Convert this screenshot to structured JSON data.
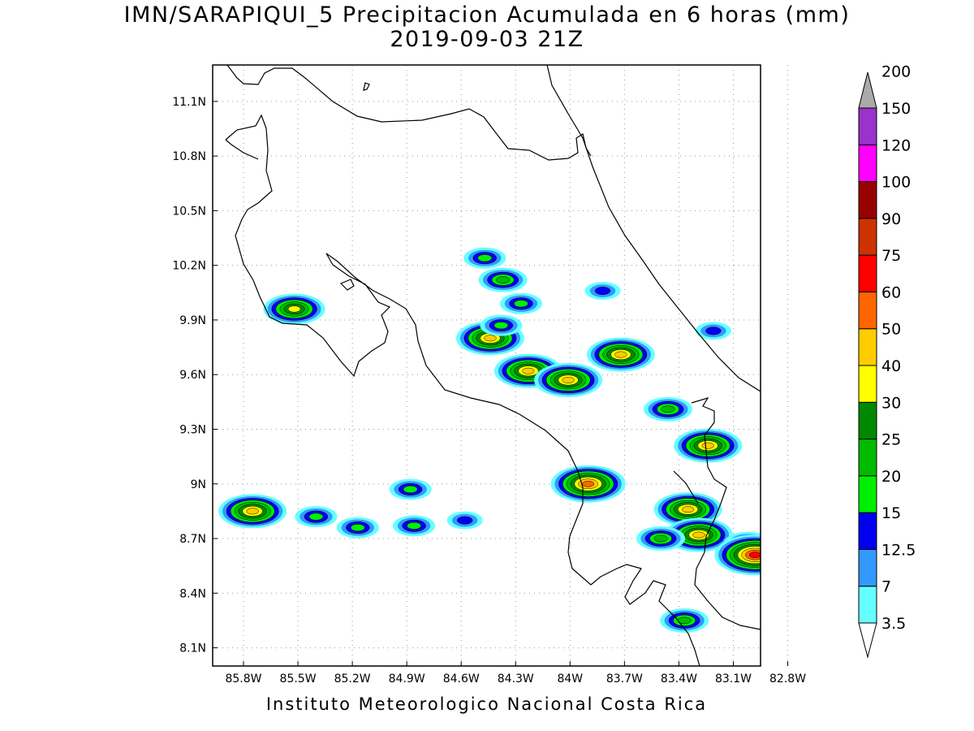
{
  "title": {
    "line1": "IMN/SARAPIQUI_5 Precipitacion Acumulada en 6 horas (mm)",
    "line2": "2019-09-03 21Z"
  },
  "footer": "Instituto Meteorologico Nacional Costa Rica",
  "map": {
    "lon_range": [
      -85.97,
      -82.95
    ],
    "lat_range": [
      8.0,
      11.3
    ],
    "x_ticks": [
      {
        "lon": -85.8,
        "label": "85.8W"
      },
      {
        "lon": -85.5,
        "label": "85.5W"
      },
      {
        "lon": -85.2,
        "label": "85.2W"
      },
      {
        "lon": -84.9,
        "label": "84.9W"
      },
      {
        "lon": -84.6,
        "label": "84.6W"
      },
      {
        "lon": -84.3,
        "label": "84.3W"
      },
      {
        "lon": -84.0,
        "label": "84W"
      },
      {
        "lon": -83.7,
        "label": "83.7W"
      },
      {
        "lon": -83.4,
        "label": "83.4W"
      },
      {
        "lon": -83.1,
        "label": "83.1W"
      },
      {
        "lon": -82.8,
        "label": "82.8W"
      }
    ],
    "y_ticks": [
      {
        "lat": 11.1,
        "label": "11.1N"
      },
      {
        "lat": 10.8,
        "label": "10.8N"
      },
      {
        "lat": 10.5,
        "label": "10.5N"
      },
      {
        "lat": 10.2,
        "label": "10.2N"
      },
      {
        "lat": 9.9,
        "label": "9.9N"
      },
      {
        "lat": 9.6,
        "label": "9.6N"
      },
      {
        "lat": 9.3,
        "label": "9.3N"
      },
      {
        "lat": 9.0,
        "label": "9N"
      },
      {
        "lat": 8.7,
        "label": "8.7N"
      },
      {
        "lat": 8.4,
        "label": "8.4N"
      },
      {
        "lat": 8.1,
        "label": "8.1N"
      }
    ],
    "grid": "dotted"
  },
  "colorbar": {
    "unit": "mm",
    "levels": [
      {
        "value": "3.5",
        "color": "#66ffff"
      },
      {
        "value": "7",
        "color": "#3399ff"
      },
      {
        "value": "12.5",
        "color": "#0000ee"
      },
      {
        "value": "15",
        "color": "#00ee00"
      },
      {
        "value": "20",
        "color": "#00bb00"
      },
      {
        "value": "25",
        "color": "#008800"
      },
      {
        "value": "30",
        "color": "#ffff00"
      },
      {
        "value": "40",
        "color": "#ffcc00"
      },
      {
        "value": "50",
        "color": "#ff6600"
      },
      {
        "value": "60",
        "color": "#ff0000"
      },
      {
        "value": "75",
        "color": "#cc3300"
      },
      {
        "value": "90",
        "color": "#990000"
      },
      {
        "value": "100",
        "color": "#ff00ff"
      },
      {
        "value": "120",
        "color": "#9933cc"
      },
      {
        "value": "150",
        "color": "#f2f2f2"
      },
      {
        "value": "200",
        "color": "#aaaaaa"
      }
    ]
  },
  "precip_cells": [
    {
      "lon": -85.52,
      "lat": 9.96,
      "max_mm": 30
    },
    {
      "lon": -85.75,
      "lat": 8.85,
      "max_mm": 40
    },
    {
      "lon": -85.4,
      "lat": 8.82,
      "max_mm": 15
    },
    {
      "lon": -85.17,
      "lat": 8.76,
      "max_mm": 15
    },
    {
      "lon": -84.88,
      "lat": 8.97,
      "max_mm": 15
    },
    {
      "lon": -84.86,
      "lat": 8.77,
      "max_mm": 15
    },
    {
      "lon": -84.58,
      "lat": 8.8,
      "max_mm": 12.5
    },
    {
      "lon": -84.37,
      "lat": 10.12,
      "max_mm": 20
    },
    {
      "lon": -84.47,
      "lat": 10.24,
      "max_mm": 15
    },
    {
      "lon": -84.27,
      "lat": 9.99,
      "max_mm": 15
    },
    {
      "lon": -84.44,
      "lat": 9.8,
      "max_mm": 40
    },
    {
      "lon": -84.38,
      "lat": 9.87,
      "max_mm": 15
    },
    {
      "lon": -84.23,
      "lat": 9.62,
      "max_mm": 40
    },
    {
      "lon": -84.01,
      "lat": 9.57,
      "max_mm": 40
    },
    {
      "lon": -83.72,
      "lat": 9.71,
      "max_mm": 40
    },
    {
      "lon": -83.9,
      "lat": 9.0,
      "max_mm": 50
    },
    {
      "lon": -83.46,
      "lat": 9.41,
      "max_mm": 20
    },
    {
      "lon": -83.24,
      "lat": 9.21,
      "max_mm": 40
    },
    {
      "lon": -83.35,
      "lat": 8.86,
      "max_mm": 40
    },
    {
      "lon": -83.29,
      "lat": 8.72,
      "max_mm": 40
    },
    {
      "lon": -83.5,
      "lat": 8.7,
      "max_mm": 20
    },
    {
      "lon": -83.02,
      "lat": 8.67,
      "max_mm": 20
    },
    {
      "lon": -82.98,
      "lat": 8.61,
      "max_mm": 60
    },
    {
      "lon": -83.37,
      "lat": 8.25,
      "max_mm": 20
    },
    {
      "lon": -83.82,
      "lat": 10.06,
      "max_mm": 12.5
    },
    {
      "lon": -83.21,
      "lat": 9.84,
      "max_mm": 12.5
    }
  ]
}
